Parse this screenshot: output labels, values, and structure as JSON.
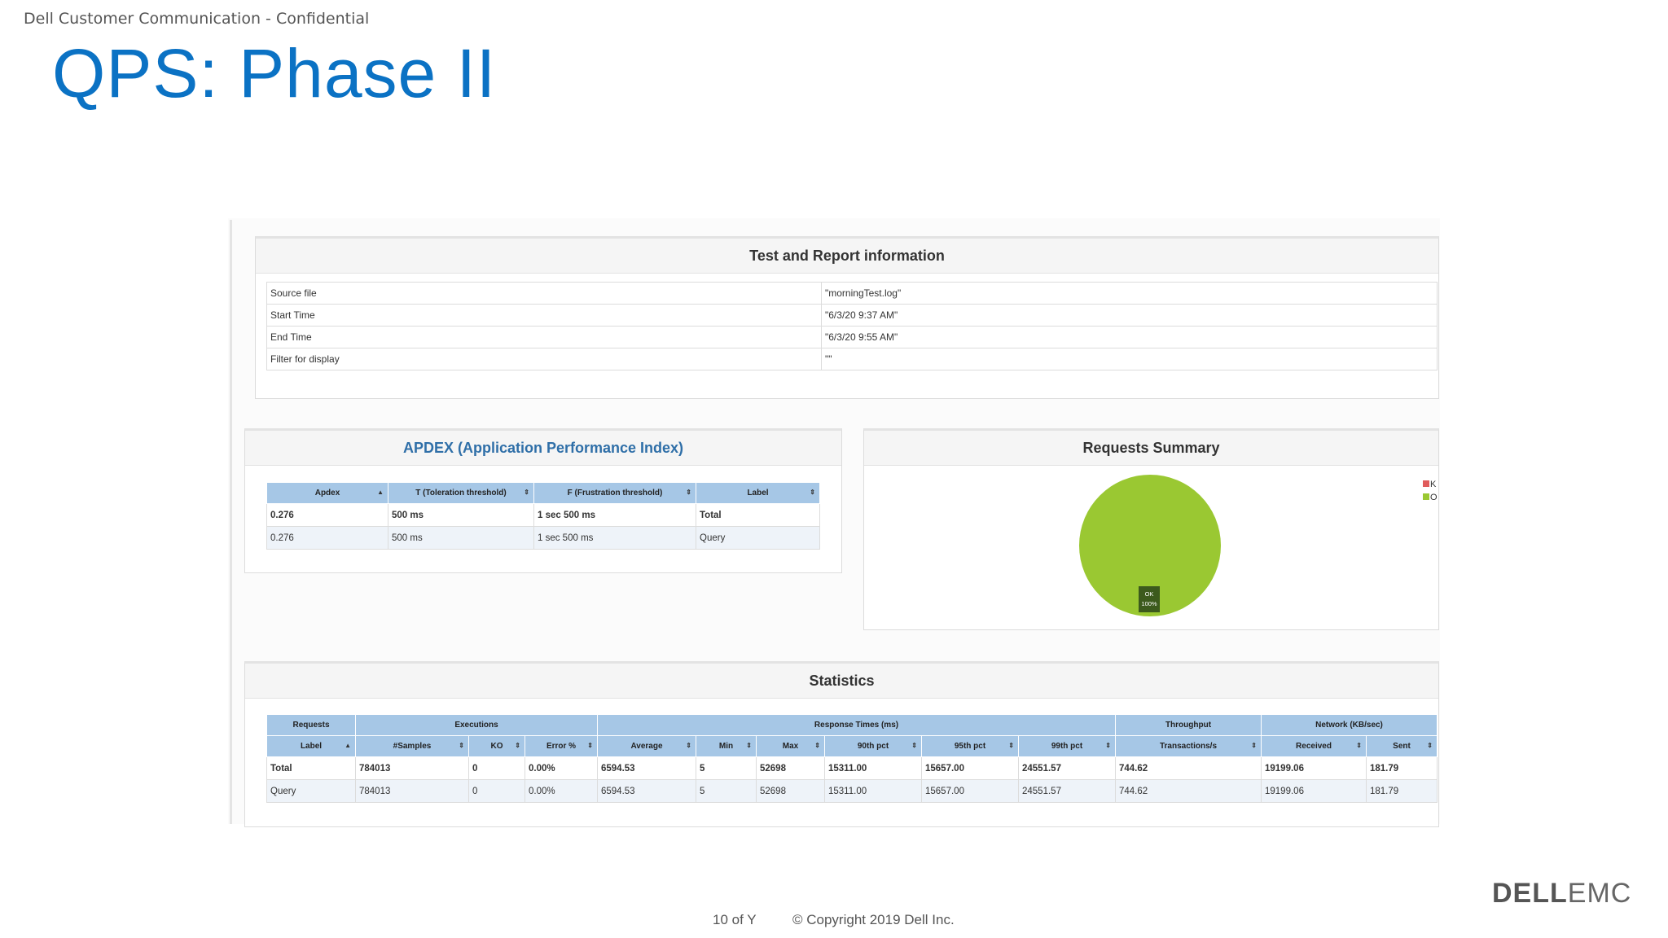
{
  "slide": {
    "confidential": "Dell Customer Communication - Confidential",
    "title": "QPS: Phase II",
    "page": "10 of Y",
    "copyright": "© Copyright 2019 Dell Inc.",
    "logo_dell": "DELL",
    "logo_emc": "EMC"
  },
  "info": {
    "title": "Test and Report information",
    "rows": [
      {
        "label": "Source file",
        "value": "\"morningTest.log\""
      },
      {
        "label": "Start Time",
        "value": "\"6/3/20 9:37 AM\""
      },
      {
        "label": "End Time",
        "value": "\"6/3/20 9:55 AM\""
      },
      {
        "label": "Filter for display",
        "value": "\"\""
      }
    ]
  },
  "apdex": {
    "title": "APDEX (Application Performance Index)",
    "headers": [
      "Apdex",
      "T (Toleration threshold)",
      "F (Frustration threshold)",
      "Label"
    ],
    "rows": [
      [
        "0.276",
        "500 ms",
        "1 sec 500 ms",
        "Total"
      ],
      [
        "0.276",
        "500 ms",
        "1 sec 500 ms",
        "Query"
      ]
    ]
  },
  "summary": {
    "title": "Requests Summary",
    "pie_label": "OK",
    "pie_pct": "100%",
    "legend": [
      {
        "label": "K",
        "color": "#e05c5c"
      },
      {
        "label": "O",
        "color": "#9ac832"
      }
    ],
    "ok_fraction": 1.0
  },
  "stats": {
    "title": "Statistics",
    "groups": [
      "Requests",
      "Executions",
      "Response Times (ms)",
      "Throughput",
      "Network (KB/sec)"
    ],
    "headers": [
      "Label",
      "#Samples",
      "KO",
      "Error %",
      "Average",
      "Min",
      "Max",
      "90th pct",
      "95th pct",
      "99th pct",
      "Transactions/s",
      "Received",
      "Sent"
    ],
    "rows": [
      [
        "Total",
        "784013",
        "0",
        "0.00%",
        "6594.53",
        "5",
        "52698",
        "15311.00",
        "15657.00",
        "24551.57",
        "744.62",
        "19199.06",
        "181.79"
      ],
      [
        "Query",
        "784013",
        "0",
        "0.00%",
        "6594.53",
        "5",
        "52698",
        "15311.00",
        "15657.00",
        "24551.57",
        "744.62",
        "19199.06",
        "181.79"
      ]
    ]
  }
}
